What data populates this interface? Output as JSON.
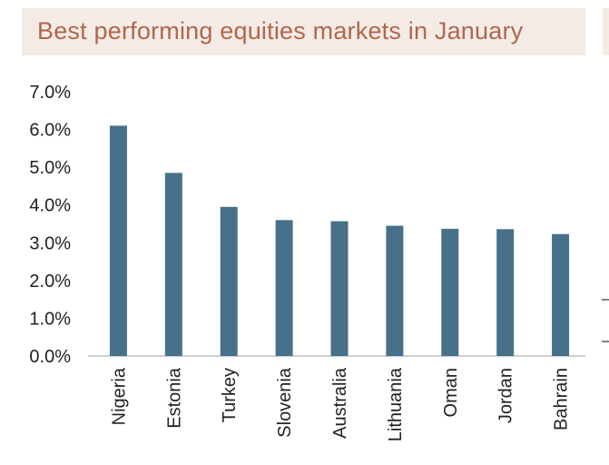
{
  "chart_data": {
    "type": "bar",
    "title": "Best performing equities markets in January",
    "categories": [
      "Nigeria",
      "Estonia",
      "Turkey",
      "Slovenia",
      "Australia",
      "Lithuania",
      "Oman",
      "Jordan",
      "Bahrain"
    ],
    "values": [
      6.1,
      4.85,
      3.95,
      3.6,
      3.57,
      3.45,
      3.37,
      3.36,
      3.23
    ],
    "yticks": [
      "0.0%",
      "1.0%",
      "2.0%",
      "3.0%",
      "4.0%",
      "5.0%",
      "6.0%",
      "7.0%"
    ],
    "ylim": [
      0,
      7
    ],
    "xlabel": "",
    "ylabel": "",
    "grid": false,
    "bar_color": "#47708a",
    "title_color": "#b0674b",
    "title_background": "#f5ebe6"
  }
}
